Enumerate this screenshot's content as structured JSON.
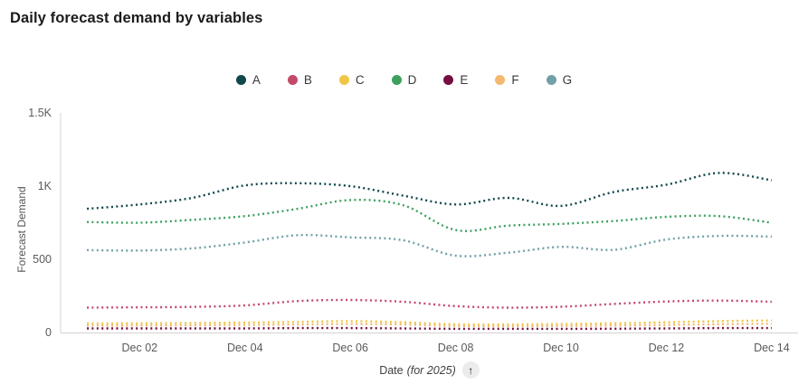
{
  "title": "Daily forecast demand by variables",
  "legend": {
    "items": [
      {
        "label": "A",
        "color": "#11474b"
      },
      {
        "label": "B",
        "color": "#c3496a"
      },
      {
        "label": "C",
        "color": "#f1c545"
      },
      {
        "label": "D",
        "color": "#3da05f"
      },
      {
        "label": "E",
        "color": "#750f3f"
      },
      {
        "label": "F",
        "color": "#f4b96e"
      },
      {
        "label": "G",
        "color": "#72a0a8"
      }
    ]
  },
  "xaxis": {
    "label_main": "Date",
    "label_note": "(for 2025)",
    "sort_arrow": "↑"
  },
  "chart_data": {
    "type": "line",
    "title": "Daily forecast demand by variables",
    "xlabel": "Date (for 2025)",
    "ylabel": "Forecast Demand",
    "line_style": "dotted",
    "grid": false,
    "legend_position": "top",
    "ylim": [
      0,
      1500
    ],
    "y_ticks": [
      {
        "value": 0,
        "label": "0"
      },
      {
        "value": 500,
        "label": "500"
      },
      {
        "value": 1000,
        "label": "1K"
      },
      {
        "value": 1500,
        "label": "1.5K"
      }
    ],
    "x": [
      "Dec 01",
      "Dec 02",
      "Dec 03",
      "Dec 04",
      "Dec 05",
      "Dec 06",
      "Dec 07",
      "Dec 08",
      "Dec 09",
      "Dec 10",
      "Dec 11",
      "Dec 12",
      "Dec 13",
      "Dec 14"
    ],
    "x_tick_labels": [
      "Dec 02",
      "Dec 04",
      "Dec 06",
      "Dec 08",
      "Dec 10",
      "Dec 12",
      "Dec 14"
    ],
    "series": [
      {
        "name": "A",
        "color": "#11474b",
        "values": [
          845,
          875,
          920,
          1005,
          1020,
          1000,
          935,
          875,
          920,
          865,
          960,
          1010,
          1090,
          1040
        ]
      },
      {
        "name": "B",
        "color": "#c3496a",
        "values": [
          170,
          172,
          175,
          185,
          215,
          222,
          210,
          180,
          170,
          176,
          195,
          212,
          218,
          210
        ]
      },
      {
        "name": "C",
        "color": "#f1c545",
        "values": [
          62,
          63,
          65,
          68,
          73,
          78,
          70,
          56,
          55,
          58,
          63,
          70,
          78,
          82
        ]
      },
      {
        "name": "D",
        "color": "#3da05f",
        "values": [
          755,
          750,
          770,
          795,
          845,
          905,
          870,
          700,
          730,
          742,
          762,
          790,
          795,
          750
        ]
      },
      {
        "name": "E",
        "color": "#750f3f",
        "values": [
          28,
          28,
          28,
          28,
          30,
          30,
          28,
          25,
          25,
          25,
          26,
          28,
          30,
          30
        ]
      },
      {
        "name": "F",
        "color": "#f4b96e",
        "values": [
          48,
          48,
          50,
          52,
          55,
          58,
          55,
          45,
          43,
          45,
          48,
          52,
          57,
          60
        ]
      },
      {
        "name": "G",
        "color": "#72a0a8",
        "values": [
          563,
          560,
          575,
          615,
          665,
          650,
          630,
          525,
          545,
          585,
          565,
          635,
          660,
          655
        ]
      }
    ]
  }
}
